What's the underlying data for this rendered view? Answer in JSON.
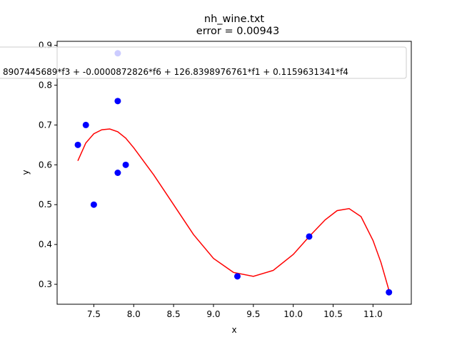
{
  "chart_data": {
    "type": "scatter",
    "title": "nh_wine.txt",
    "subtitle": "error  = 0.00943",
    "xlabel": "x",
    "ylabel": "y",
    "xlim": [
      7.04,
      11.48
    ],
    "ylim": [
      0.25,
      0.91
    ],
    "xticks": [
      "7.5",
      "8.0",
      "8.5",
      "9.0",
      "9.5",
      "10.0",
      "10.5",
      "11.0"
    ],
    "xtick_values": [
      7.5,
      8.0,
      8.5,
      9.0,
      9.5,
      10.0,
      10.5,
      11.0
    ],
    "yticks": [
      "0.3",
      "0.4",
      "0.5",
      "0.6",
      "0.7",
      "0.8",
      "0.9"
    ],
    "ytick_values": [
      0.3,
      0.4,
      0.5,
      0.6,
      0.7,
      0.8,
      0.9
    ],
    "grid": false,
    "legend_text": "8907445689*f3 + -0.0000872826*f6 + 126.8398976761*f1 + 0.1159631341*f4",
    "legend_placement": "top-center",
    "points": [
      {
        "x": 7.3,
        "y": 0.65
      },
      {
        "x": 7.4,
        "y": 0.7
      },
      {
        "x": 7.5,
        "y": 0.5
      },
      {
        "x": 7.8,
        "y": 0.88
      },
      {
        "x": 7.8,
        "y": 0.76
      },
      {
        "x": 7.8,
        "y": 0.58
      },
      {
        "x": 7.9,
        "y": 0.6
      },
      {
        "x": 9.3,
        "y": 0.32
      },
      {
        "x": 10.2,
        "y": 0.42
      },
      {
        "x": 11.2,
        "y": 0.28
      }
    ],
    "fit_curve": {
      "x": [
        7.3,
        7.4,
        7.5,
        7.6,
        7.7,
        7.8,
        7.9,
        8.0,
        8.25,
        8.5,
        8.75,
        9.0,
        9.25,
        9.5,
        9.75,
        10.0,
        10.2,
        10.4,
        10.55,
        10.7,
        10.85,
        11.0,
        11.1,
        11.2
      ],
      "y": [
        0.61,
        0.655,
        0.678,
        0.688,
        0.69,
        0.683,
        0.667,
        0.643,
        0.575,
        0.5,
        0.425,
        0.365,
        0.33,
        0.32,
        0.335,
        0.375,
        0.42,
        0.462,
        0.485,
        0.49,
        0.47,
        0.41,
        0.355,
        0.285
      ]
    },
    "colors": {
      "points": "#0000ff",
      "curve": "#ff0000"
    }
  }
}
